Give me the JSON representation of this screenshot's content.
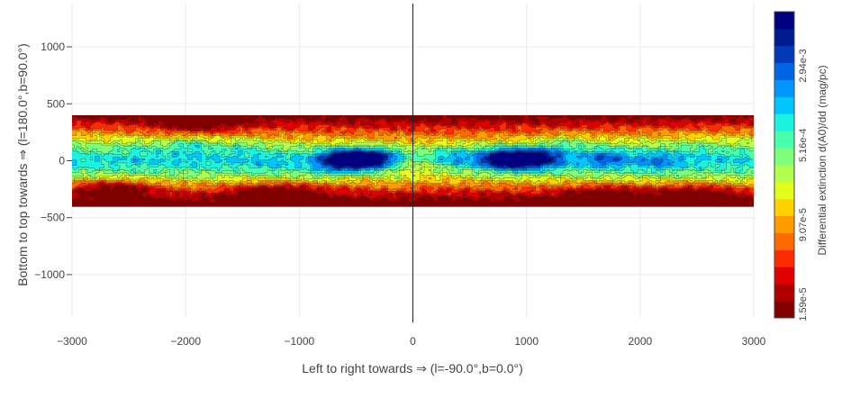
{
  "chart_data": {
    "type": "heatmap",
    "subtype": "filled contour map",
    "xlabel": "Left to right towards ⇒ (l=-90.0°,b=0.0°)",
    "ylabel": "Bottom to top towards ⇒ (l=180.0°,b=90.0°)",
    "xlim": [
      -3000,
      3000
    ],
    "ylim": [
      -1380,
      1380
    ],
    "x_ticks": [
      -3000,
      -2000,
      -1000,
      0,
      1000,
      2000,
      3000
    ],
    "x_tick_labels": [
      "−3000",
      "−2000",
      "−1000",
      "0",
      "1000",
      "2000",
      "3000"
    ],
    "y_ticks": [
      -1000,
      -500,
      0,
      500,
      1000
    ],
    "y_tick_labels": [
      "−1000",
      "−500",
      "0",
      "500",
      "1000"
    ],
    "data_extent": {
      "x": [
        -3000,
        3000
      ],
      "y": [
        -400,
        400
      ]
    },
    "vertical_reference_line_x": 0,
    "grid": true,
    "colorbar": {
      "title": "Differential extinction d(A0)/dd (mag/pc)",
      "scale": "log",
      "ticks": [
        1.59e-05,
        9.07e-05,
        0.000516,
        0.00294
      ],
      "tick_labels": [
        "1.59e-5",
        "9.07e-5",
        "5.16e-4",
        "2.94e-3"
      ],
      "colors_low_to_high": [
        "#800000",
        "#b10000",
        "#e00000",
        "#ff2b00",
        "#ff6a00",
        "#ff9c00",
        "#ffd200",
        "#e1ff1a",
        "#b3ff4d",
        "#7dff7a",
        "#49ffad",
        "#1cf2e0",
        "#00c6ff",
        "#0096ff",
        "#0066e6",
        "#003ab8",
        "#001a8f",
        "#000080"
      ]
    },
    "features": [
      {
        "name": "dense cloud",
        "x": -630,
        "y": 10,
        "level": 0.99
      },
      {
        "name": "dense cloud",
        "x": -450,
        "y": 0,
        "level": 0.92
      },
      {
        "name": "dense cloud",
        "x": -300,
        "y": 20,
        "level": 0.82
      },
      {
        "name": "dense cloud",
        "x": 780,
        "y": 15,
        "level": 1.0
      },
      {
        "name": "dense cloud",
        "x": 980,
        "y": 10,
        "level": 0.9
      },
      {
        "name": "dense cloud",
        "x": 1150,
        "y": 30,
        "level": 0.8
      },
      {
        "name": "dense cloud",
        "x": 1700,
        "y": 20,
        "level": 0.72
      },
      {
        "name": "dense cloud",
        "x": 2150,
        "y": -10,
        "level": 0.66
      },
      {
        "name": "dense cloud",
        "x": -1950,
        "y": 140,
        "level": 0.66
      },
      {
        "name": "dense cloud",
        "x": -2400,
        "y": 120,
        "level": 0.55
      },
      {
        "name": "dense cloud",
        "x": -1500,
        "y": 130,
        "level": 0.6
      },
      {
        "name": "dense cloud",
        "x": -1250,
        "y": -60,
        "level": 0.55
      },
      {
        "name": "dense cloud",
        "x": 350,
        "y": 20,
        "level": 0.68
      },
      {
        "name": "dense cloud",
        "x": 180,
        "y": -60,
        "level": 0.5
      },
      {
        "name": "dense cloud",
        "x": 2500,
        "y": 110,
        "level": 0.55
      },
      {
        "name": "dense cloud",
        "x": 1350,
        "y": 160,
        "level": 0.62
      },
      {
        "name": "dense cloud",
        "x": -800,
        "y": -100,
        "level": 0.6
      },
      {
        "name": "dense cloud",
        "x": -150,
        "y": -200,
        "level": 0.55
      },
      {
        "name": "dense cloud",
        "x": -2700,
        "y": 60,
        "level": 0.48
      },
      {
        "name": "low-extinction cavity",
        "x": -2650,
        "y": -250,
        "level": 0.02
      },
      {
        "name": "low-extinction cavity",
        "x": -1200,
        "y": -290,
        "level": 0.05
      },
      {
        "name": "low-extinction cavity",
        "x": 60,
        "y": -30,
        "level": 0.2
      },
      {
        "name": "low-extinction cavity",
        "x": 2500,
        "y": -290,
        "level": 0.15
      },
      {
        "name": "low-extinction cavity",
        "x": 1700,
        "y": -300,
        "level": 0.18
      },
      {
        "name": "low-extinction cavity",
        "x": -1900,
        "y": 320,
        "level": 0.2
      }
    ]
  }
}
